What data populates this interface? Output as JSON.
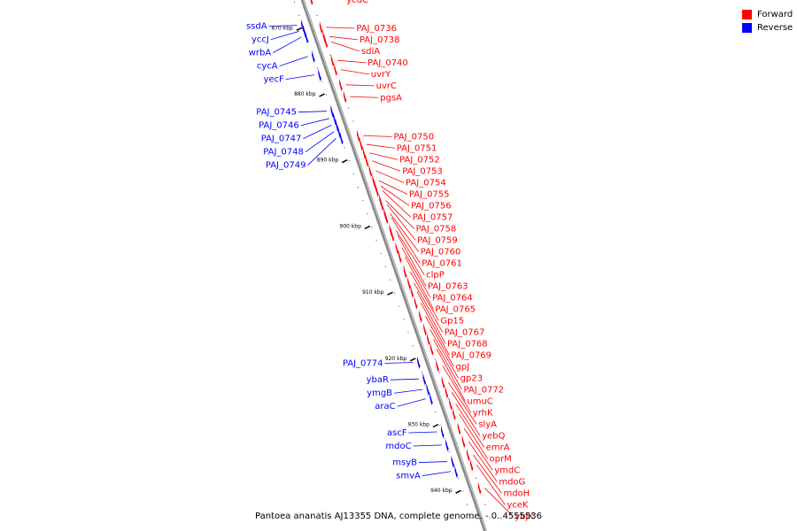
{
  "legend": {
    "forward": {
      "label": "Forward",
      "color": "#ff0000"
    },
    "reverse": {
      "label": "Reverse",
      "color": "#0000ff"
    }
  },
  "caption": "Pantoea ananatis AJ13355 DNA, complete genome. - 0..4555536",
  "axis": {
    "start_kbp": 865,
    "end_kbp": 946,
    "ticks": [
      {
        "kbp": 870,
        "label": "870 kbp"
      },
      {
        "kbp": 880,
        "label": "880 kbp"
      },
      {
        "kbp": 890,
        "label": "890 kbp"
      },
      {
        "kbp": 900,
        "label": "900 kbp"
      },
      {
        "kbp": 910,
        "label": "910 kbp"
      },
      {
        "kbp": 920,
        "label": "920 kbp"
      },
      {
        "kbp": 930,
        "label": "930 kbp"
      },
      {
        "kbp": 940,
        "label": "940 kbp"
      }
    ]
  },
  "genes_forward": [
    {
      "name": "ycdC",
      "kbp": 865.5
    },
    {
      "name": "PAJ_0736",
      "kbp": 869.8
    },
    {
      "name": "PAJ_0738",
      "kbp": 871.2
    },
    {
      "name": "sdiA",
      "kbp": 872.0
    },
    {
      "name": "PAJ_0740",
      "kbp": 874.8
    },
    {
      "name": "uvrY",
      "kbp": 876.2
    },
    {
      "name": "uvrC",
      "kbp": 878.5
    },
    {
      "name": "pgsA",
      "kbp": 880.3
    },
    {
      "name": "PAJ_0750",
      "kbp": 886.2
    },
    {
      "name": "PAJ_0751",
      "kbp": 887.5
    },
    {
      "name": "PAJ_0752",
      "kbp": 888.8
    },
    {
      "name": "PAJ_0753",
      "kbp": 890.0
    },
    {
      "name": "PAJ_0754",
      "kbp": 891.5
    },
    {
      "name": "PAJ_0755",
      "kbp": 893.0
    },
    {
      "name": "PAJ_0756",
      "kbp": 893.8
    },
    {
      "name": "PAJ_0757",
      "kbp": 894.5
    },
    {
      "name": "PAJ_0758",
      "kbp": 896.0
    },
    {
      "name": "PAJ_0759",
      "kbp": 896.6
    },
    {
      "name": "PAJ_0760",
      "kbp": 898.0
    },
    {
      "name": "PAJ_0761",
      "kbp": 898.6
    },
    {
      "name": "clpP",
      "kbp": 900.5
    },
    {
      "name": "PAJ_0763",
      "kbp": 901.2
    },
    {
      "name": "PAJ_0764",
      "kbp": 903.2
    },
    {
      "name": "PAJ_0765",
      "kbp": 904.5
    },
    {
      "name": "Gp15",
      "kbp": 906.8
    },
    {
      "name": "PAJ_0767",
      "kbp": 908.5
    },
    {
      "name": "PAJ_0768",
      "kbp": 909.8
    },
    {
      "name": "PAJ_0769",
      "kbp": 911.5
    },
    {
      "name": "gpJ",
      "kbp": 913.5
    },
    {
      "name": "gp23",
      "kbp": 915.5
    },
    {
      "name": "PAJ_0772",
      "kbp": 917.0
    },
    {
      "name": "umuC",
      "kbp": 918.5
    },
    {
      "name": "yrhK",
      "kbp": 921.0
    },
    {
      "name": "slyA",
      "kbp": 923.5
    },
    {
      "name": "yebQ",
      "kbp": 925.0
    },
    {
      "name": "emrA",
      "kbp": 926.8
    },
    {
      "name": "oprM",
      "kbp": 928.3
    },
    {
      "name": "ymdC",
      "kbp": 930.5
    },
    {
      "name": "mdoG",
      "kbp": 932.5
    },
    {
      "name": "mdoH",
      "kbp": 934.5
    },
    {
      "name": "yceK",
      "kbp": 936.0
    },
    {
      "name": "ybjK",
      "kbp": 939.5
    }
  ],
  "genes_reverse": [
    {
      "name": "ssdA",
      "kbp": 869.5
    },
    {
      "name": "yccJ",
      "kbp": 870.4
    },
    {
      "name": "wrbA",
      "kbp": 871.3
    },
    {
      "name": "cycA",
      "kbp": 874.2
    },
    {
      "name": "yecF",
      "kbp": 877.0
    },
    {
      "name": "PAJ_0745",
      "kbp": 882.5
    },
    {
      "name": "PAJ_0746",
      "kbp": 883.6
    },
    {
      "name": "PAJ_0747",
      "kbp": 884.6
    },
    {
      "name": "PAJ_0748",
      "kbp": 885.6
    },
    {
      "name": "PAJ_0749",
      "kbp": 886.6
    },
    {
      "name": "PAJ_0774",
      "kbp": 920.5
    },
    {
      "name": "ybaR",
      "kbp": 923.0
    },
    {
      "name": "ymgB",
      "kbp": 924.6
    },
    {
      "name": "araC",
      "kbp": 926.0
    },
    {
      "name": "ascF",
      "kbp": 931.0
    },
    {
      "name": "mdoC",
      "kbp": 933.0
    },
    {
      "name": "msyB",
      "kbp": 935.5
    },
    {
      "name": "smvA",
      "kbp": 937.0
    }
  ]
}
